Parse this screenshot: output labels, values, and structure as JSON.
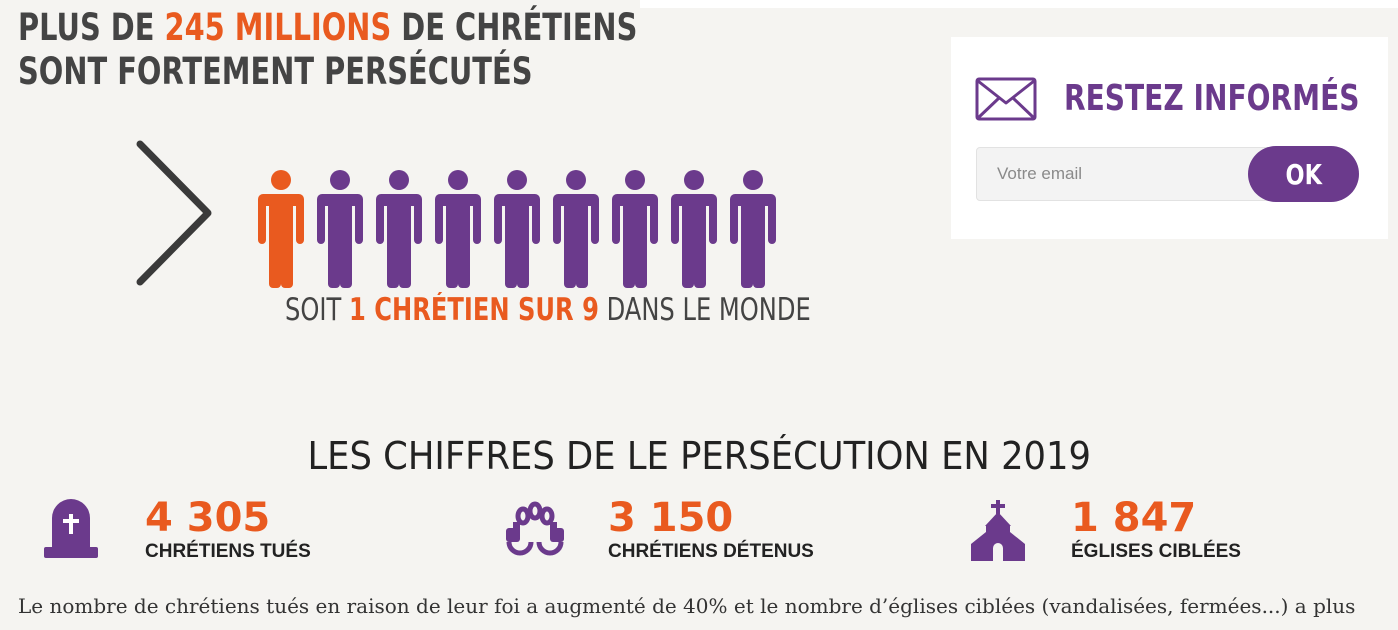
{
  "headline": {
    "line1_pre": "PLUS DE ",
    "line1_accent": "245 MILLIONS",
    "line1_post": " DE CHRÉTIENS",
    "line2": "SONT FORTEMENT PERSÉCUTÉS"
  },
  "ratio": {
    "pre": "SOIT ",
    "num1": "1",
    "mid": " CHRÉTIEN SUR ",
    "num2": "9",
    "post": " DANS LE MONDE"
  },
  "people": {
    "total": 9,
    "highlighted": 1,
    "colors": {
      "highlight": "#e95a1f",
      "default": "#6b3a8c"
    }
  },
  "newsletter": {
    "title": "RESTEZ INFORMÉS",
    "email_placeholder": "Votre email",
    "email_value": "",
    "submit_label": "OK"
  },
  "stats": {
    "title": "LES CHIFFRES DE LE PERSÉCUTION EN 2019",
    "items": [
      {
        "icon": "tombstone-icon",
        "value": "4 305",
        "label": "CHRÉTIENS TUÉS"
      },
      {
        "icon": "handcuffs-icon",
        "value": "3 150",
        "label": "CHRÉTIENS DÉTENUS"
      },
      {
        "icon": "church-icon",
        "value": "1 847",
        "label": "ÉGLISES CIBLÉES"
      }
    ]
  },
  "body_text": "Le nombre de chrétiens tués en raison de leur foi a augmenté de 40% et le nombre d’églises ciblées (vandalisées, fermées...) a plus",
  "colors": {
    "accent_orange": "#e95a1f",
    "brand_purple": "#6b3a8c",
    "background": "#f5f4f1"
  }
}
